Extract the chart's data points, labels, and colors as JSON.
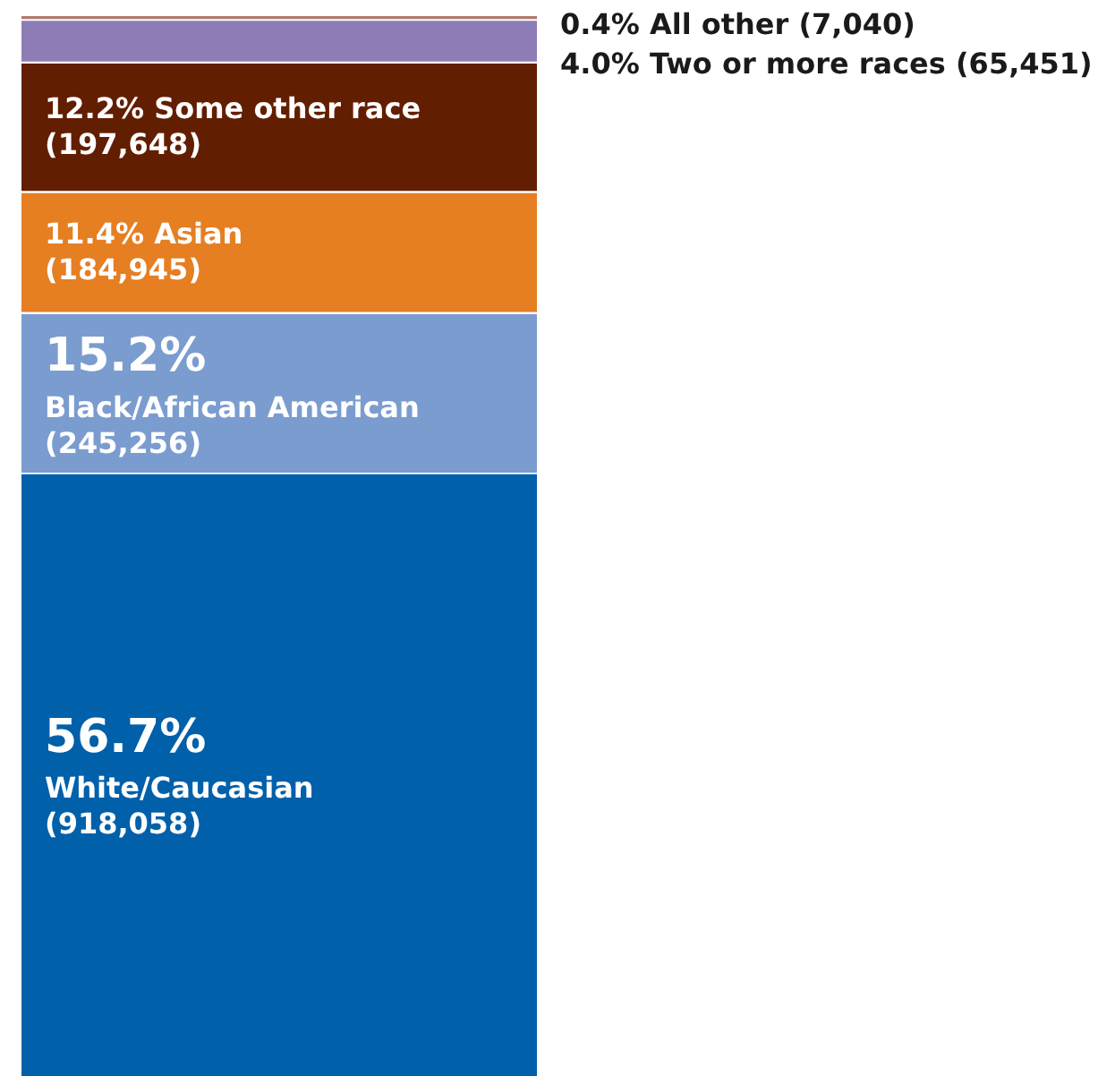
{
  "chart_data": {
    "type": "bar",
    "stacked": true,
    "tick_labels": false,
    "categories": [
      null
    ],
    "series": [
      {
        "color": "#0060aa",
        "values": [
          918058
        ],
        "value_labels": [
          "56.7%\nWhite/Caucasian\n(918,058)"
        ]
      },
      {
        "color": "#7b9ccf",
        "values": [
          245256
        ],
        "value_labels": [
          "15.2%\nBlack/African American\n(245,256)"
        ]
      },
      {
        "color": "#e67e22",
        "values": [
          184945
        ],
        "value_labels": [
          "11.4% Asian\n(184,945)"
        ]
      },
      {
        "color": "#621e00",
        "values": [
          197648
        ],
        "value_labels": [
          "12.2% Some other race\n(197,648)"
        ]
      },
      {
        "color": "#8e7cb6",
        "values": [
          65451
        ]
      },
      {
        "color": "#b07a6c",
        "values": [
          7040
        ]
      }
    ],
    "annotations": [
      "0.4% All other (7,040)",
      "4.0% Two or more races (65,451)"
    ]
  }
}
